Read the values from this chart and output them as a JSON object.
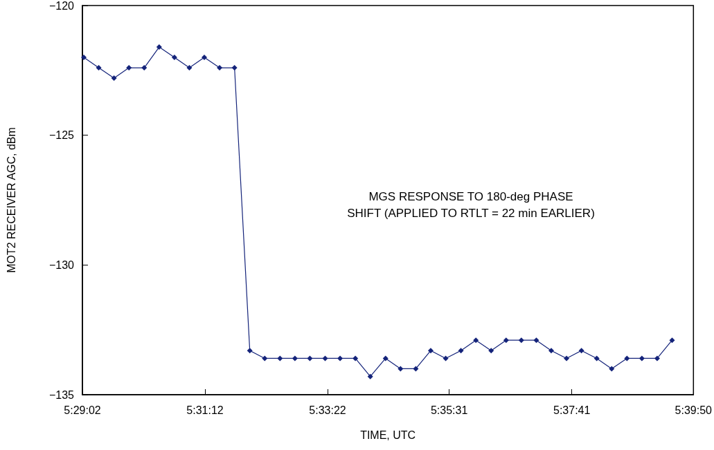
{
  "chart_data": {
    "type": "line",
    "xlabel": "TIME, UTC",
    "ylabel": "MOT2 RECEIVER AGC, dBm",
    "annotations": [
      "MGS RESPONSE TO 180-deg PHASE\nSHIFT (APPLIED TO RTLT = 22 min EARLIER)"
    ],
    "x": [
      5.4843,
      5.4887,
      5.4932,
      5.4976,
      5.5021,
      5.5065,
      5.511,
      5.5154,
      5.5198,
      5.5243,
      5.5287,
      5.5332,
      5.5376,
      5.5421,
      5.5465,
      5.5509,
      5.5554,
      5.5598,
      5.5643,
      5.5687,
      5.5732,
      5.5776,
      5.5821,
      5.5865,
      5.5909,
      5.5954,
      5.5998,
      5.6043,
      5.6087,
      5.6132,
      5.6176,
      5.622,
      5.6265,
      5.6309,
      5.6354,
      5.6398,
      5.6443,
      5.6487,
      5.6532,
      5.6576
    ],
    "series": [
      {
        "color": "#14237a",
        "values": [
          -122.0,
          -122.4,
          -122.8,
          -122.4,
          -122.4,
          -121.6,
          -122.0,
          -122.4,
          -122.0,
          -122.4,
          -122.4,
          -133.3,
          -133.6,
          -133.6,
          -133.6,
          -133.6,
          -133.6,
          -133.6,
          -133.6,
          -134.3,
          -133.6,
          -134.0,
          -134.0,
          -133.3,
          -133.6,
          -133.3,
          -132.9,
          -133.3,
          -132.9,
          -132.9,
          -132.9,
          -133.3,
          -133.6,
          -133.3,
          -133.6,
          -134.0,
          -133.6,
          -133.6,
          -133.6,
          -132.9
        ]
      }
    ],
    "marker": "diamond",
    "line_style": "solid",
    "xlim": [
      5.48389,
      5.66389
    ],
    "xticks": [
      {
        "value": 5.48389,
        "label": "5:29:02"
      },
      {
        "value": 5.52,
        "label": "5:31:12"
      },
      {
        "value": 5.55611,
        "label": "5:33:22"
      },
      {
        "value": 5.59194,
        "label": "5:35:31"
      },
      {
        "value": 5.62806,
        "label": "5:37:41"
      },
      {
        "value": 5.66389,
        "label": "5:39:50"
      }
    ],
    "ylim": [
      -135,
      -120
    ],
    "yticks": [
      {
        "value": -135,
        "label": "−135"
      },
      {
        "value": -130,
        "label": "−130"
      },
      {
        "value": -125,
        "label": "−125"
      },
      {
        "value": -120,
        "label": "−120"
      }
    ]
  }
}
